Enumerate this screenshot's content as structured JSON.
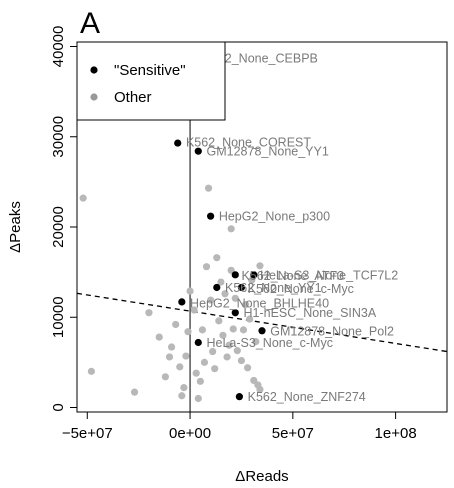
{
  "chart_data": {
    "type": "scatter",
    "panel_label": "A",
    "xlabel": "ΔReads",
    "ylabel": "ΔPeaks",
    "xlim": [
      -55000000,
      125000000
    ],
    "ylim": [
      -500,
      40500
    ],
    "x_ticks": [
      {
        "value": -50000000,
        "label": "−5e+07"
      },
      {
        "value": 0,
        "label": "0e+00"
      },
      {
        "value": 50000000,
        "label": "5e+07"
      },
      {
        "value": 100000000,
        "label": "1e+08"
      }
    ],
    "y_ticks": [
      {
        "value": 0,
        "label": "0"
      },
      {
        "value": 10000,
        "label": "10000"
      },
      {
        "value": 20000,
        "label": "20000"
      },
      {
        "value": 30000,
        "label": "30000"
      },
      {
        "value": 40000,
        "label": "40000"
      }
    ],
    "vertical_line_x": 0,
    "trend_line": {
      "x0": -55000000,
      "y0": 12650,
      "x1": 125000000,
      "y1": 6200
    },
    "colors": {
      "sensitive": "#000000",
      "other": "#b8b8b8",
      "annotation": "#7a7a7a"
    },
    "legend": {
      "placement": "top-left",
      "entries": [
        {
          "label": "\"Sensitive\"",
          "color": "#000000"
        },
        {
          "label": "Other",
          "color": "#999999"
        }
      ]
    },
    "series": [
      {
        "name": "\"Sensitive\"",
        "color": "#000000",
        "points": [
          {
            "x": -6000000,
            "y": 29300
          },
          {
            "x": 4000000,
            "y": 28400
          },
          {
            "x": 10000000,
            "y": 21200
          },
          {
            "x": 22000000,
            "y": 14700
          },
          {
            "x": 31000000,
            "y": 14700
          },
          {
            "x": 13000000,
            "y": 13300
          },
          {
            "x": 25000000,
            "y": 13300
          },
          {
            "x": -4000000,
            "y": 11700
          },
          {
            "x": 22000000,
            "y": 10500
          },
          {
            "x": 35000000,
            "y": 8500
          },
          {
            "x": 4000000,
            "y": 7200
          },
          {
            "x": 24000000,
            "y": 1200
          }
        ]
      },
      {
        "name": "Other",
        "color": "#b8b8b8",
        "points": [
          {
            "x": -3000000,
            "y": 38500
          },
          {
            "x": -52000000,
            "y": 23200
          },
          {
            "x": -48000000,
            "y": 4000
          },
          {
            "x": -27000000,
            "y": 1700
          },
          {
            "x": -20000000,
            "y": 10500
          },
          {
            "x": -15000000,
            "y": 7800
          },
          {
            "x": -12000000,
            "y": 3400
          },
          {
            "x": -10000000,
            "y": 5600
          },
          {
            "x": -9000000,
            "y": 6700
          },
          {
            "x": -7000000,
            "y": 9200
          },
          {
            "x": -5000000,
            "y": 4500
          },
          {
            "x": -4000000,
            "y": 1300
          },
          {
            "x": -3000000,
            "y": 2200
          },
          {
            "x": -2000000,
            "y": 5700
          },
          {
            "x": -1000000,
            "y": 8400
          },
          {
            "x": 0,
            "y": 12900
          },
          {
            "x": 2000000,
            "y": 10800
          },
          {
            "x": 3000000,
            "y": 3800
          },
          {
            "x": 4000000,
            "y": 1000
          },
          {
            "x": 5000000,
            "y": 2900
          },
          {
            "x": 6000000,
            "y": 8600
          },
          {
            "x": 7000000,
            "y": 5000
          },
          {
            "x": 8000000,
            "y": 15600
          },
          {
            "x": 9000000,
            "y": 24300
          },
          {
            "x": 10000000,
            "y": 11900
          },
          {
            "x": 11000000,
            "y": 6200
          },
          {
            "x": 12000000,
            "y": 4300
          },
          {
            "x": 13000000,
            "y": 16600
          },
          {
            "x": 14000000,
            "y": 9600
          },
          {
            "x": 15000000,
            "y": 13900
          },
          {
            "x": 16000000,
            "y": 8000
          },
          {
            "x": 17000000,
            "y": 12600
          },
          {
            "x": 18000000,
            "y": 5600
          },
          {
            "x": 19000000,
            "y": 6900
          },
          {
            "x": 20000000,
            "y": 19800
          },
          {
            "x": 20000000,
            "y": 15200
          },
          {
            "x": 21000000,
            "y": 8700
          },
          {
            "x": 22000000,
            "y": 12100
          },
          {
            "x": 23000000,
            "y": 6300
          },
          {
            "x": 25000000,
            "y": 5200
          },
          {
            "x": 26000000,
            "y": 8600
          },
          {
            "x": 27000000,
            "y": 11400
          },
          {
            "x": 28000000,
            "y": 4400
          },
          {
            "x": 29000000,
            "y": 9800
          },
          {
            "x": 30000000,
            "y": 14100
          },
          {
            "x": 31000000,
            "y": 3000
          },
          {
            "x": 32000000,
            "y": 7300
          },
          {
            "x": 33000000,
            "y": 2500
          },
          {
            "x": 34000000,
            "y": 15700
          },
          {
            "x": 34000000,
            "y": 2000
          }
        ]
      }
    ],
    "annotations": [
      {
        "text": "HepG2_None_CEBPB",
        "x": 1000000,
        "y": 38700
      },
      {
        "text": "K562_None_COREST",
        "x": -2000000,
        "y": 29400
      },
      {
        "text": "GM12878_None_YY1",
        "x": 8000000,
        "y": 28400
      },
      {
        "text": "HepG2_None_p300",
        "x": 14000000,
        "y": 21200
      },
      {
        "text": "HeLa-S3_None_TCF7L2",
        "x": 34000000,
        "y": 14700
      },
      {
        "text": "K562_None_ATF3",
        "x": 25000000,
        "y": 14600
      },
      {
        "text": "K562_None_YY1",
        "x": 17000000,
        "y": 13300
      },
      {
        "text": "K562_None_c-Myc",
        "x": 28000000,
        "y": 13200
      },
      {
        "text": "HepG2_None_BHLHE40",
        "x": 0,
        "y": 11600
      },
      {
        "text": "H1-hESC_None_SIN3A",
        "x": 26000000,
        "y": 10500
      },
      {
        "text": "GM12878_None_Pol2",
        "x": 39000000,
        "y": 8500
      },
      {
        "text": "HeLa-S3_None_c-Myc",
        "x": 8000000,
        "y": 7200
      },
      {
        "text": "K562_None_ZNF274",
        "x": 28000000,
        "y": 1200
      }
    ]
  }
}
